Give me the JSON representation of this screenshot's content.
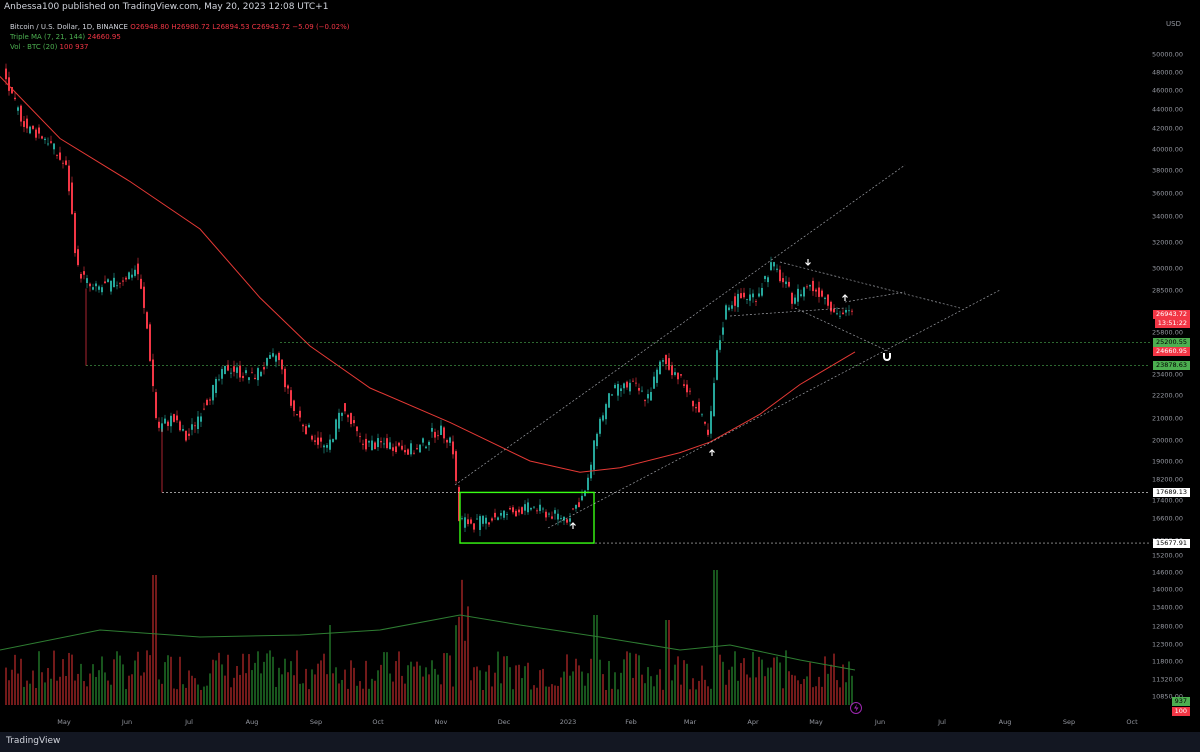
{
  "publisher": "Anbessa100 published on TradingView.com, May 20, 2023 12:08 UTC+1",
  "legend": {
    "symbol": "Bitcoin / U.S. Dollar, 1D, BINANCE",
    "ohlc": "O26948.80 H26980.72 L26894.53 C26943.72 −5.09 (−0.02%)",
    "ma_label": "Triple MA (7, 21, 144)",
    "ma_value": "24660.95",
    "vol_label": "Vol · BTC (20)",
    "vol_values": "100  937"
  },
  "axis_currency": "USD",
  "footer_logo": "TradingView",
  "colors": {
    "up": "#26a69a",
    "down": "#f23645",
    "bg": "#000000",
    "ma": "#e53935",
    "box": "#39ff14",
    "vol_ma": "#2e7d32"
  },
  "price_tags": [
    {
      "text": "26943.72",
      "sub": "13:51:22",
      "price": 26943.72,
      "bg": "#f23645",
      "fg": "#ffffff"
    },
    {
      "text": "25200.55",
      "price": 25200.55,
      "bg": "#4caf50",
      "fg": "#000000"
    },
    {
      "text": "24660.95",
      "price": 24660.95,
      "bg": "#f23645",
      "fg": "#ffffff"
    },
    {
      "text": "23878.63",
      "price": 23878.63,
      "bg": "#4caf50",
      "fg": "#000000"
    },
    {
      "text": "17689.13",
      "price": 17689.13,
      "bg": "#ffffff",
      "fg": "#000000"
    },
    {
      "text": "15677.91",
      "price": 15677.91,
      "bg": "#ffffff",
      "fg": "#000000"
    },
    {
      "text": "937",
      "vol": true,
      "bg": "#4caf50",
      "fg": "#000000"
    },
    {
      "text": "100",
      "vol": true,
      "bg": "#f23645",
      "fg": "#ffffff"
    }
  ],
  "chart_data": {
    "type": "candlestick",
    "y_ticks": [
      "50000.00",
      "48000.00",
      "46000.00",
      "44000.00",
      "42000.00",
      "40000.00",
      "38000.00",
      "36000.00",
      "34000.00",
      "32000.00",
      "30000.00",
      "28500.00",
      "25800.00",
      "23400.00",
      "22200.00",
      "21000.00",
      "20000.00",
      "19000.00",
      "18200.00",
      "17400.00",
      "16600.00",
      "15800.00",
      "15200.00",
      "14600.00",
      "14000.00",
      "13400.00",
      "12800.00",
      "12300.00",
      "11800.00",
      "11320.00",
      "10850.00"
    ],
    "x_ticks": [
      "May",
      "Jun",
      "Jul",
      "Aug",
      "Sep",
      "Oct",
      "Nov",
      "Dec",
      "2023",
      "Feb",
      "Mar",
      "Apr",
      "May",
      "Jun",
      "Jul",
      "Aug",
      "Sep",
      "Oct"
    ],
    "ma_144_points": [
      [
        0,
        47500
      ],
      [
        60,
        41000
      ],
      [
        130,
        37000
      ],
      [
        200,
        33000
      ],
      [
        260,
        28000
      ],
      [
        310,
        25000
      ],
      [
        370,
        22600
      ],
      [
        450,
        20800
      ],
      [
        530,
        19000
      ],
      [
        580,
        18500
      ],
      [
        620,
        18700
      ],
      [
        680,
        19400
      ],
      [
        710,
        19900
      ],
      [
        760,
        21200
      ],
      [
        800,
        22800
      ],
      [
        855,
        24660
      ]
    ],
    "price_path": [
      [
        5,
        48500
      ],
      [
        15,
        45000
      ],
      [
        30,
        42000
      ],
      [
        50,
        41000
      ],
      [
        70,
        38000
      ],
      [
        80,
        30000
      ],
      [
        95,
        28500
      ],
      [
        120,
        29000
      ],
      [
        140,
        30000
      ],
      [
        150,
        26000
      ],
      [
        160,
        20500
      ],
      [
        175,
        21000
      ],
      [
        190,
        20000
      ],
      [
        205,
        21500
      ],
      [
        230,
        23800
      ],
      [
        255,
        23200
      ],
      [
        280,
        24500
      ],
      [
        295,
        21500
      ],
      [
        310,
        20500
      ],
      [
        330,
        19500
      ],
      [
        345,
        21500
      ],
      [
        365,
        19800
      ],
      [
        390,
        19800
      ],
      [
        420,
        19500
      ],
      [
        440,
        20500
      ],
      [
        455,
        20000
      ],
      [
        462,
        16500
      ],
      [
        480,
        16400
      ],
      [
        500,
        16700
      ],
      [
        520,
        16900
      ],
      [
        535,
        17100
      ],
      [
        550,
        16800
      ],
      [
        570,
        16600
      ],
      [
        590,
        17800
      ],
      [
        600,
        20500
      ],
      [
        615,
        22400
      ],
      [
        635,
        22800
      ],
      [
        650,
        22000
      ],
      [
        665,
        24200
      ],
      [
        680,
        23400
      ],
      [
        700,
        21500
      ],
      [
        712,
        20000
      ],
      [
        720,
        24500
      ],
      [
        730,
        27600
      ],
      [
        745,
        28000
      ],
      [
        760,
        28200
      ],
      [
        775,
        30300
      ],
      [
        795,
        28000
      ],
      [
        810,
        28800
      ],
      [
        825,
        28300
      ],
      [
        840,
        27000
      ],
      [
        852,
        26943
      ]
    ],
    "horizontal_levels": [
      25200.55,
      23878.63,
      17689.13,
      15677.91
    ],
    "volume_ma": [
      [
        0,
        55
      ],
      [
        100,
        75
      ],
      [
        200,
        68
      ],
      [
        300,
        70
      ],
      [
        380,
        75
      ],
      [
        460,
        90
      ],
      [
        520,
        80
      ],
      [
        600,
        68
      ],
      [
        680,
        55
      ],
      [
        730,
        60
      ],
      [
        800,
        45
      ],
      [
        855,
        35
      ]
    ],
    "volume_spikes": [
      [
        460,
        160
      ],
      [
        155,
        130
      ],
      [
        716,
        135
      ],
      [
        595,
        90
      ],
      [
        667,
        85
      ],
      [
        330,
        80
      ]
    ]
  }
}
